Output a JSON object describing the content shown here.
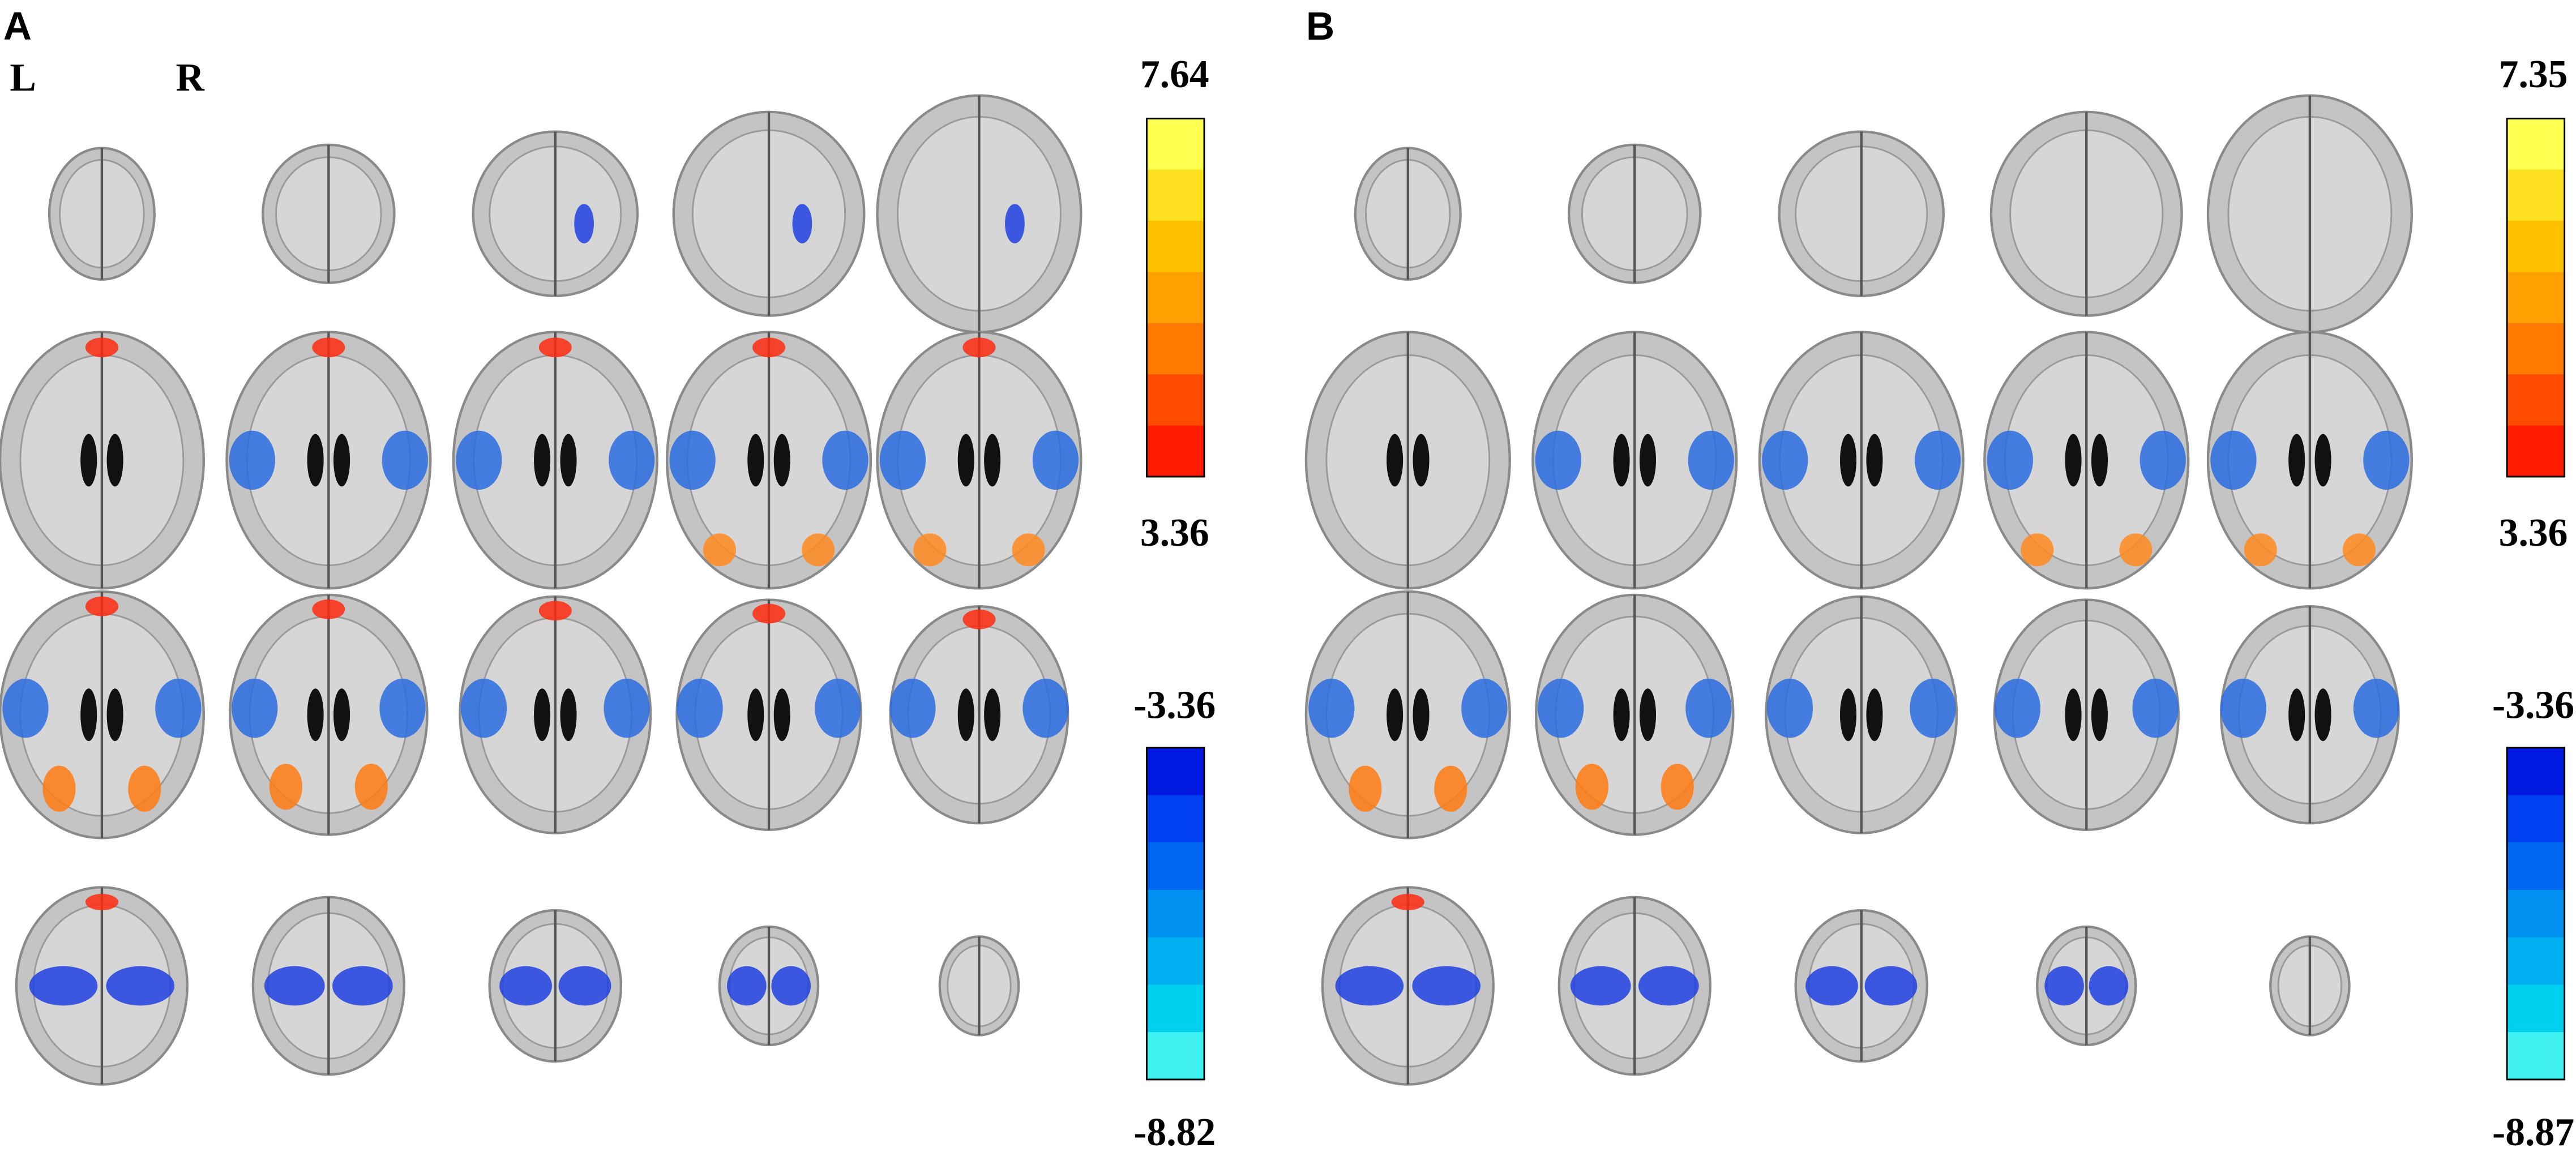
{
  "panels": [
    {
      "label": "A",
      "orientation": {
        "left": "L",
        "right": "R"
      },
      "colorbars": {
        "positive": {
          "max": 7.64,
          "min": 3.36
        },
        "negative": {
          "max": -3.36,
          "min": -8.82
        }
      }
    },
    {
      "label": "B",
      "colorbars": {
        "positive": {
          "max": 7.35,
          "min": 3.36
        },
        "negative": {
          "max": -3.36,
          "min": -8.87
        }
      }
    }
  ]
}
